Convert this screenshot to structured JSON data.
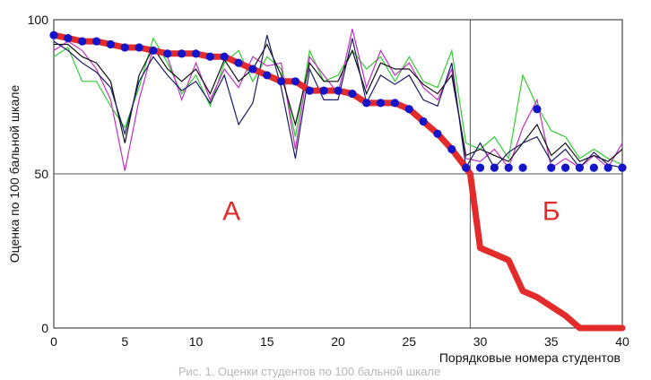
{
  "chart_data": {
    "type": "line",
    "xlabel": "Порядковые номера студентов",
    "ylabel": "Оценка по 100 бальной шкале",
    "xlim": [
      0,
      40
    ],
    "ylim": [
      0,
      100
    ],
    "x_ticks": [
      "0",
      "5",
      "10",
      "15",
      "20",
      "25",
      "30",
      "35",
      "40"
    ],
    "y_ticks": [
      "0",
      "50",
      "100"
    ],
    "reference_lines": {
      "horizontal_y": 50,
      "vertical_x": 29.3
    },
    "region_labels": [
      {
        "text": "А",
        "x": 12.5,
        "y": 35,
        "color": "#e32b2b"
      },
      {
        "text": "Б",
        "x": 35,
        "y": 35,
        "color": "#e32b2b"
      }
    ],
    "caption": "Рис. 1. Оценки студентов по 100 бальной шкале",
    "series": [
      {
        "role": "final",
        "color": "#e32b2b",
        "x": [
          0,
          1,
          2,
          3,
          4,
          5,
          6,
          7,
          8,
          9,
          10,
          11,
          12,
          13,
          14,
          15,
          16,
          17,
          18,
          19,
          20,
          21,
          22,
          23,
          24,
          25,
          26,
          27,
          28,
          29,
          29.3,
          30,
          31,
          32,
          33,
          34,
          35,
          36,
          37,
          38,
          39,
          40
        ],
        "values": [
          95,
          94,
          93,
          93,
          92,
          91,
          91,
          90,
          89,
          89,
          89,
          88,
          88,
          86,
          84,
          82,
          80,
          80,
          77,
          77,
          77,
          76,
          73,
          73,
          73,
          71,
          67,
          63,
          58,
          52,
          50,
          26,
          24,
          22,
          12,
          10,
          7,
          4,
          0,
          0,
          0,
          0
        ]
      },
      {
        "role": "markers",
        "color": "#1414c8",
        "x": [
          0,
          1,
          2,
          3,
          4,
          5,
          6,
          7,
          8,
          9,
          10,
          11,
          12,
          13,
          14,
          15,
          16,
          17,
          18,
          19,
          20,
          21,
          22,
          23,
          24,
          25,
          26,
          27,
          28,
          29,
          30,
          31,
          32,
          33,
          34,
          35,
          36,
          37,
          38,
          39,
          40
        ],
        "values": [
          95,
          94,
          93,
          93,
          92,
          91,
          91,
          90,
          89,
          89,
          89,
          88,
          88,
          86,
          84,
          82,
          80,
          80,
          77,
          77,
          77,
          76,
          73,
          73,
          73,
          71,
          67,
          63,
          58,
          52,
          52,
          52,
          52,
          52,
          71,
          52,
          52,
          52,
          52,
          52,
          52
        ]
      },
      {
        "role": "component",
        "color": "#33cc33",
        "x": [
          0,
          1,
          2,
          3,
          4,
          5,
          6,
          7,
          8,
          9,
          10,
          11,
          12,
          13,
          14,
          15,
          16,
          17,
          18,
          19,
          20,
          21,
          22,
          23,
          24,
          25,
          26,
          27,
          28,
          29,
          30,
          31,
          32,
          33,
          34,
          35,
          36,
          37,
          38,
          39,
          40
        ],
        "values": [
          88,
          91,
          80,
          80,
          72,
          65,
          78,
          94,
          86,
          76,
          82,
          72,
          86,
          90,
          80,
          88,
          84,
          62,
          90,
          80,
          82,
          90,
          84,
          88,
          80,
          88,
          80,
          78,
          90,
          60,
          58,
          62,
          55,
          82,
          72,
          64,
          62,
          55,
          58,
          55,
          53
        ]
      },
      {
        "role": "component",
        "color": "#c030c0",
        "x": [
          0,
          1,
          2,
          3,
          4,
          5,
          6,
          7,
          8,
          9,
          10,
          11,
          12,
          13,
          14,
          15,
          16,
          17,
          18,
          19,
          20,
          21,
          22,
          23,
          24,
          25,
          26,
          27,
          28,
          29,
          30,
          31,
          32,
          33,
          34,
          35,
          36,
          37,
          38,
          39,
          40
        ],
        "values": [
          90,
          93,
          90,
          84,
          74,
          51,
          74,
          91,
          88,
          74,
          86,
          74,
          84,
          78,
          88,
          85,
          86,
          58,
          88,
          82,
          76,
          97,
          78,
          90,
          82,
          86,
          78,
          74,
          84,
          55,
          54,
          58,
          52,
          65,
          74,
          52,
          55,
          52,
          56,
          52,
          60
        ]
      },
      {
        "role": "component",
        "color": "#111111",
        "x": [
          0,
          1,
          2,
          3,
          4,
          5,
          6,
          7,
          8,
          9,
          10,
          11,
          12,
          13,
          14,
          15,
          16,
          17,
          18,
          19,
          20,
          21,
          22,
          23,
          24,
          25,
          26,
          27,
          28,
          29,
          30,
          31,
          32,
          33,
          34,
          35,
          36,
          37,
          38,
          39,
          40
        ],
        "values": [
          92,
          92,
          88,
          86,
          80,
          60,
          82,
          91,
          84,
          80,
          84,
          76,
          87,
          80,
          84,
          92,
          82,
          66,
          86,
          80,
          80,
          90,
          76,
          86,
          84,
          84,
          79,
          76,
          82,
          56,
          58,
          56,
          54,
          60,
          66,
          56,
          60,
          54,
          56,
          54,
          58
        ]
      },
      {
        "role": "component",
        "color": "#1a1a66",
        "x": [
          0,
          1,
          2,
          3,
          4,
          5,
          6,
          7,
          8,
          9,
          10,
          11,
          12,
          13,
          14,
          15,
          16,
          17,
          18,
          19,
          20,
          21,
          22,
          23,
          24,
          25,
          26,
          27,
          28,
          29,
          30,
          31,
          32,
          33,
          34,
          35,
          36,
          37,
          38,
          39,
          40
        ],
        "values": [
          93,
          90,
          86,
          83,
          78,
          63,
          80,
          88,
          82,
          77,
          80,
          73,
          82,
          66,
          73,
          95,
          78,
          55,
          84,
          74,
          74,
          94,
          73,
          82,
          79,
          82,
          74,
          72,
          86,
          52,
          60,
          52,
          57,
          60,
          62,
          54,
          58,
          52,
          57,
          53,
          52
        ]
      }
    ]
  }
}
